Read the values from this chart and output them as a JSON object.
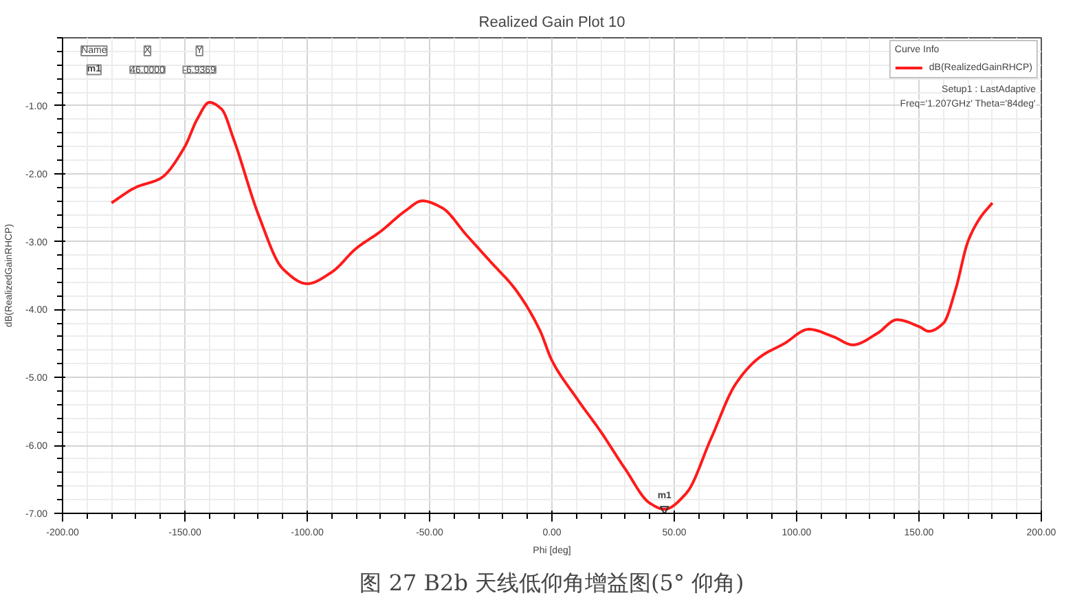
{
  "chart_data": {
    "type": "line",
    "title": "Realized Gain Plot 10",
    "xlabel": "Phi [deg]",
    "ylabel": "dB(RealizedGainRHCP)",
    "legend_title": "Curve Info",
    "legend": "top right",
    "grid": true,
    "line_style": "solid",
    "marker": "none",
    "xlim": [
      -200,
      200
    ],
    "ylim": [
      -7,
      0
    ],
    "xticks": [
      {
        "value": -200,
        "label": "-200.00"
      },
      {
        "value": -150,
        "label": "-150.00"
      },
      {
        "value": -100,
        "label": "-100.00"
      },
      {
        "value": -50,
        "label": "-50.00"
      },
      {
        "value": 0,
        "label": "0.00"
      },
      {
        "value": 50,
        "label": "50.00"
      },
      {
        "value": 100,
        "label": "100.00"
      },
      {
        "value": 150,
        "label": "150.00"
      },
      {
        "value": 200,
        "label": "200.00"
      }
    ],
    "yticks": [
      {
        "value": -7,
        "label": "-7.00"
      },
      {
        "value": -6,
        "label": "-6.00"
      },
      {
        "value": -5,
        "label": "-5.00"
      },
      {
        "value": -4,
        "label": "-4.00"
      },
      {
        "value": -3,
        "label": "-3.00"
      },
      {
        "value": -2,
        "label": "-2.00"
      },
      {
        "value": -1,
        "label": "-1.00"
      }
    ],
    "series": [
      {
        "name": "dB(RealizedGainRHCP)",
        "color": "#ff1a1a",
        "x": [
          -180,
          -170,
          -160,
          -150,
          -145,
          -140,
          -135,
          -130,
          -120,
          -110,
          -100,
          -90,
          -80,
          -70,
          -60,
          -53,
          -45,
          -35,
          -25,
          -15,
          -5,
          0,
          10,
          20,
          30,
          40,
          46,
          55,
          65,
          75,
          85,
          95,
          105,
          115,
          123,
          133,
          141,
          150,
          154,
          160,
          165,
          170,
          175,
          180
        ],
        "values": [
          -2.43,
          -2.2,
          -2.07,
          -1.6,
          -1.2,
          -0.95,
          -1.05,
          -1.5,
          -2.6,
          -3.4,
          -3.62,
          -3.45,
          -3.1,
          -2.85,
          -2.55,
          -2.4,
          -2.5,
          -2.9,
          -3.3,
          -3.7,
          -4.3,
          -4.75,
          -5.3,
          -5.8,
          -6.35,
          -6.85,
          -6.94,
          -6.7,
          -5.9,
          -5.1,
          -4.7,
          -4.5,
          -4.29,
          -4.4,
          -4.52,
          -4.35,
          -4.15,
          -4.25,
          -4.32,
          -4.2,
          -3.7,
          -3.0,
          -2.65,
          -2.43
        ]
      }
    ],
    "annotations": [
      {
        "text": "m1",
        "x": 46,
        "y": -6.9369
      },
      "Name",
      "X",
      "Y",
      "m1",
      "46.0000",
      "-6.9369",
      "Setup1 : LastAdaptive",
      "Freq='1.207GHz' Theta='84deg'",
      "图 27 B2b 天线低仰角增益图(5° 仰角)"
    ]
  }
}
